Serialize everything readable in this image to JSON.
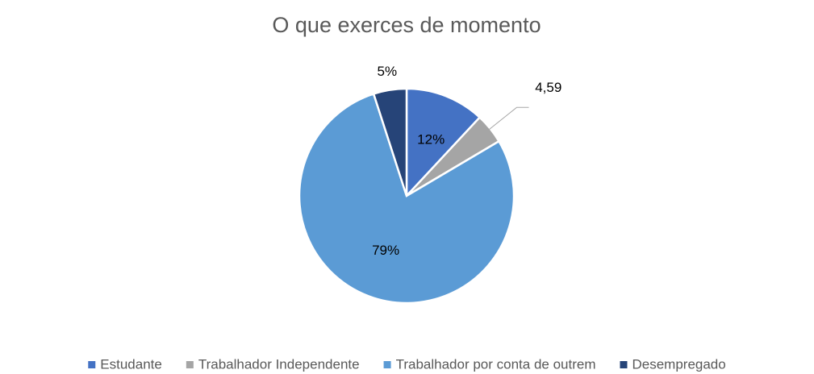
{
  "chart_data": {
    "type": "pie",
    "title": "O que exerces de momento",
    "categories": [
      "Estudante",
      "Trabalhador Independente",
      "Trabalhador por conta de outrem",
      "Desempregado"
    ],
    "values": [
      12,
      4.59,
      79,
      5
    ],
    "value_labels": [
      "12%",
      "4,59",
      "79%",
      "5%"
    ],
    "colors": [
      "#4472c4",
      "#a5a5a5",
      "#5b9bd5",
      "#264478"
    ],
    "legend": "bottom"
  }
}
